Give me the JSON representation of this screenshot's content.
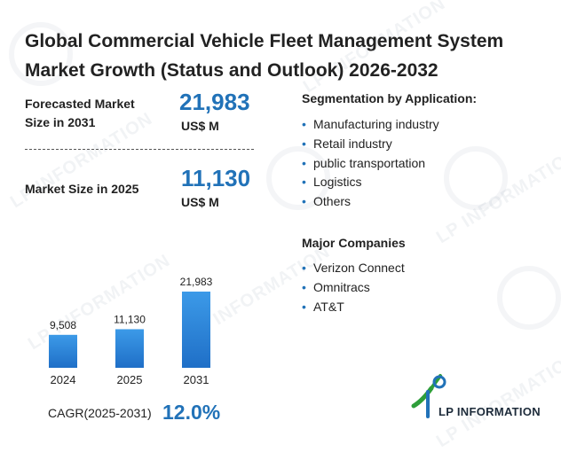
{
  "title_line1": "Global Commercial Vehicle Fleet Management System",
  "title_line2": "Market Growth (Status and Outlook) 2026-2032",
  "forecast": {
    "label_line1": "Forecasted Market",
    "label_line2": "Size in 2031",
    "value": "21,983",
    "unit": "US$ M"
  },
  "current": {
    "label": "Market Size in 2025",
    "value": "11,130",
    "unit": "US$ M"
  },
  "segmentation": {
    "title": "Segmentation by Application:",
    "items": [
      "Manufacturing industry",
      "Retail industry",
      "public transportation",
      "Logistics",
      "Others"
    ]
  },
  "companies": {
    "title": "Major Companies",
    "items": [
      "Verizon Connect",
      "Omnitracs",
      "AT&T"
    ]
  },
  "cagr": {
    "label": "CAGR(2025-2031)",
    "value": "12.0%"
  },
  "brand": {
    "name": "LP INFORMATION",
    "watermark": "LP INFORMATION",
    "accent": "#2172b8",
    "logo_green": "#2e9e3a"
  },
  "chart_data": {
    "type": "bar",
    "categories": [
      "2024",
      "2025",
      "2031"
    ],
    "values": [
      9508,
      11130,
      21983
    ],
    "value_labels": [
      "9,508",
      "11,130",
      "21,983"
    ],
    "ylim": [
      0,
      21983
    ],
    "grid": false,
    "colors": {
      "top": "#3c9ae8",
      "bottom": "#1f6fc7"
    }
  }
}
